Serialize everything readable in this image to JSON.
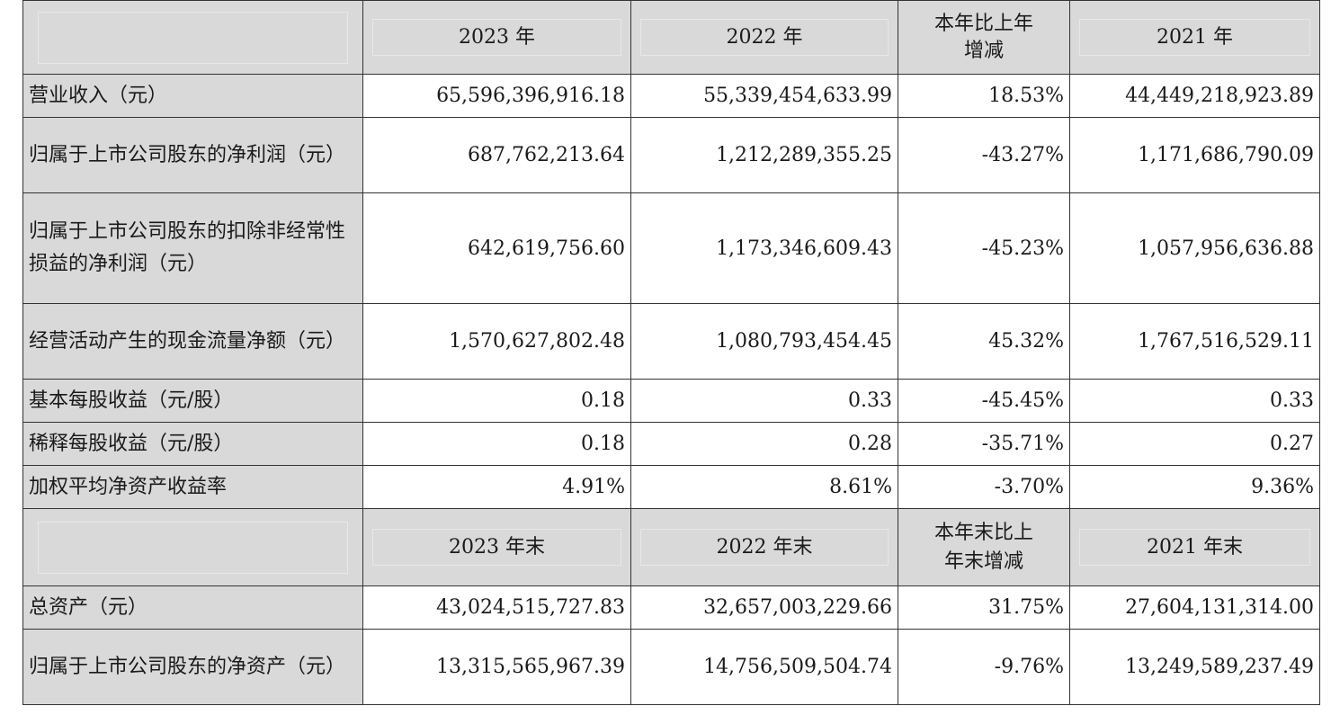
{
  "header1": {
    "c1": "2023 年",
    "c2": "2022 年",
    "c3": "本年比上年\n增减",
    "c4": "2021 年"
  },
  "rows1": [
    {
      "label": "营业收入（元）",
      "v1": "65,596,396,916.18",
      "v2": "55,339,454,633.99",
      "v3": "18.53%",
      "v4": "44,449,218,923.89"
    },
    {
      "label": "归属于上市公司股东的净利润（元）",
      "v1": "687,762,213.64",
      "v2": "1,212,289,355.25",
      "v3": "-43.27%",
      "v4": "1,171,686,790.09"
    },
    {
      "label": "归属于上市公司股东的扣除非经常性损益的净利润（元）",
      "v1": "642,619,756.60",
      "v2": "1,173,346,609.43",
      "v3": "-45.23%",
      "v4": "1,057,956,636.88"
    },
    {
      "label": "经营活动产生的现金流量净额（元）",
      "v1": "1,570,627,802.48",
      "v2": "1,080,793,454.45",
      "v3": "45.32%",
      "v4": "1,767,516,529.11"
    },
    {
      "label": "基本每股收益（元/股）",
      "v1": "0.18",
      "v2": "0.33",
      "v3": "-45.45%",
      "v4": "0.33"
    },
    {
      "label": "稀释每股收益（元/股）",
      "v1": "0.18",
      "v2": "0.28",
      "v3": "-35.71%",
      "v4": "0.27"
    },
    {
      "label": "加权平均净资产收益率",
      "v1": "4.91%",
      "v2": "8.61%",
      "v3": "-3.70%",
      "v4": "9.36%"
    }
  ],
  "header2": {
    "c1": "2023 年末",
    "c2": "2022 年末",
    "c3": "本年末比上\n年末增减",
    "c4": "2021 年末"
  },
  "rows2": [
    {
      "label": "总资产（元）",
      "v1": "43,024,515,727.83",
      "v2": "32,657,003,229.66",
      "v3": "31.75%",
      "v4": "27,604,131,314.00"
    },
    {
      "label": "归属于上市公司股东的净资产（元）",
      "v1": "13,315,565,967.39",
      "v2": "14,756,509,504.74",
      "v3": "-9.76%",
      "v4": "13,249,589,237.49"
    }
  ]
}
